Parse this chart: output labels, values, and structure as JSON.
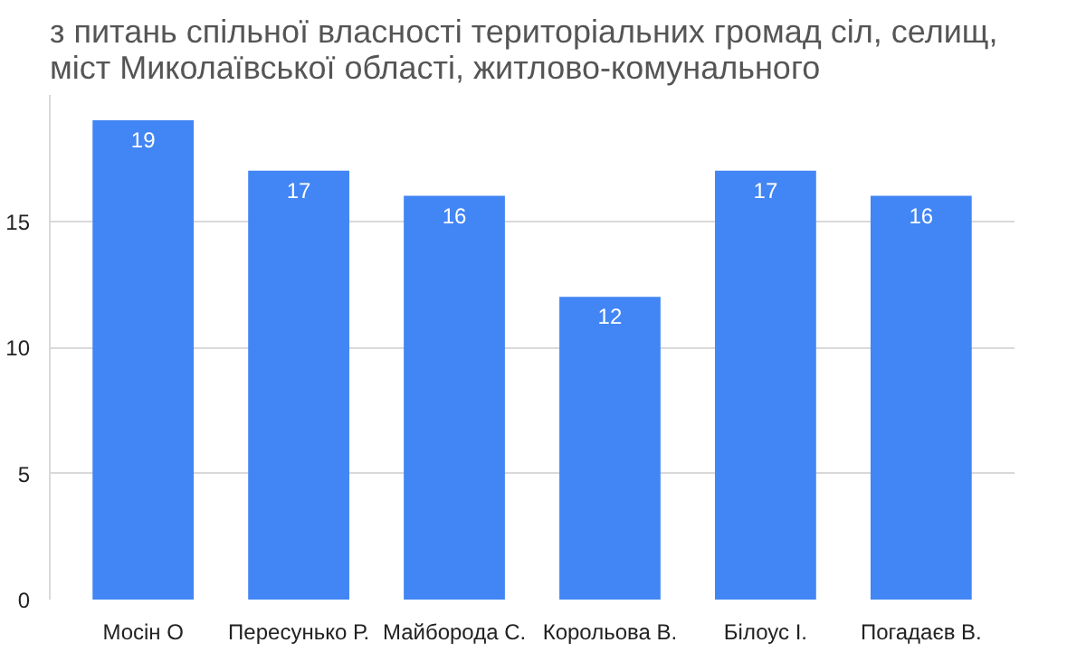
{
  "chart_data": {
    "type": "bar",
    "title": "з питань спільної власності територіальних громад сіл, селищ, міст Миколаївської області, житлово-комунального",
    "categories": [
      "Мосін О",
      "Пересунько Р.",
      "Майборода С.",
      "Корольова В.",
      "Білоус І.",
      "Погадаєв В."
    ],
    "values": [
      19,
      17,
      16,
      12,
      17,
      16
    ],
    "color": "#4285f4",
    "data_labels": true,
    "ylim": [
      0,
      20
    ],
    "yticks": [
      0,
      5,
      10,
      15
    ],
    "grid": "y"
  }
}
